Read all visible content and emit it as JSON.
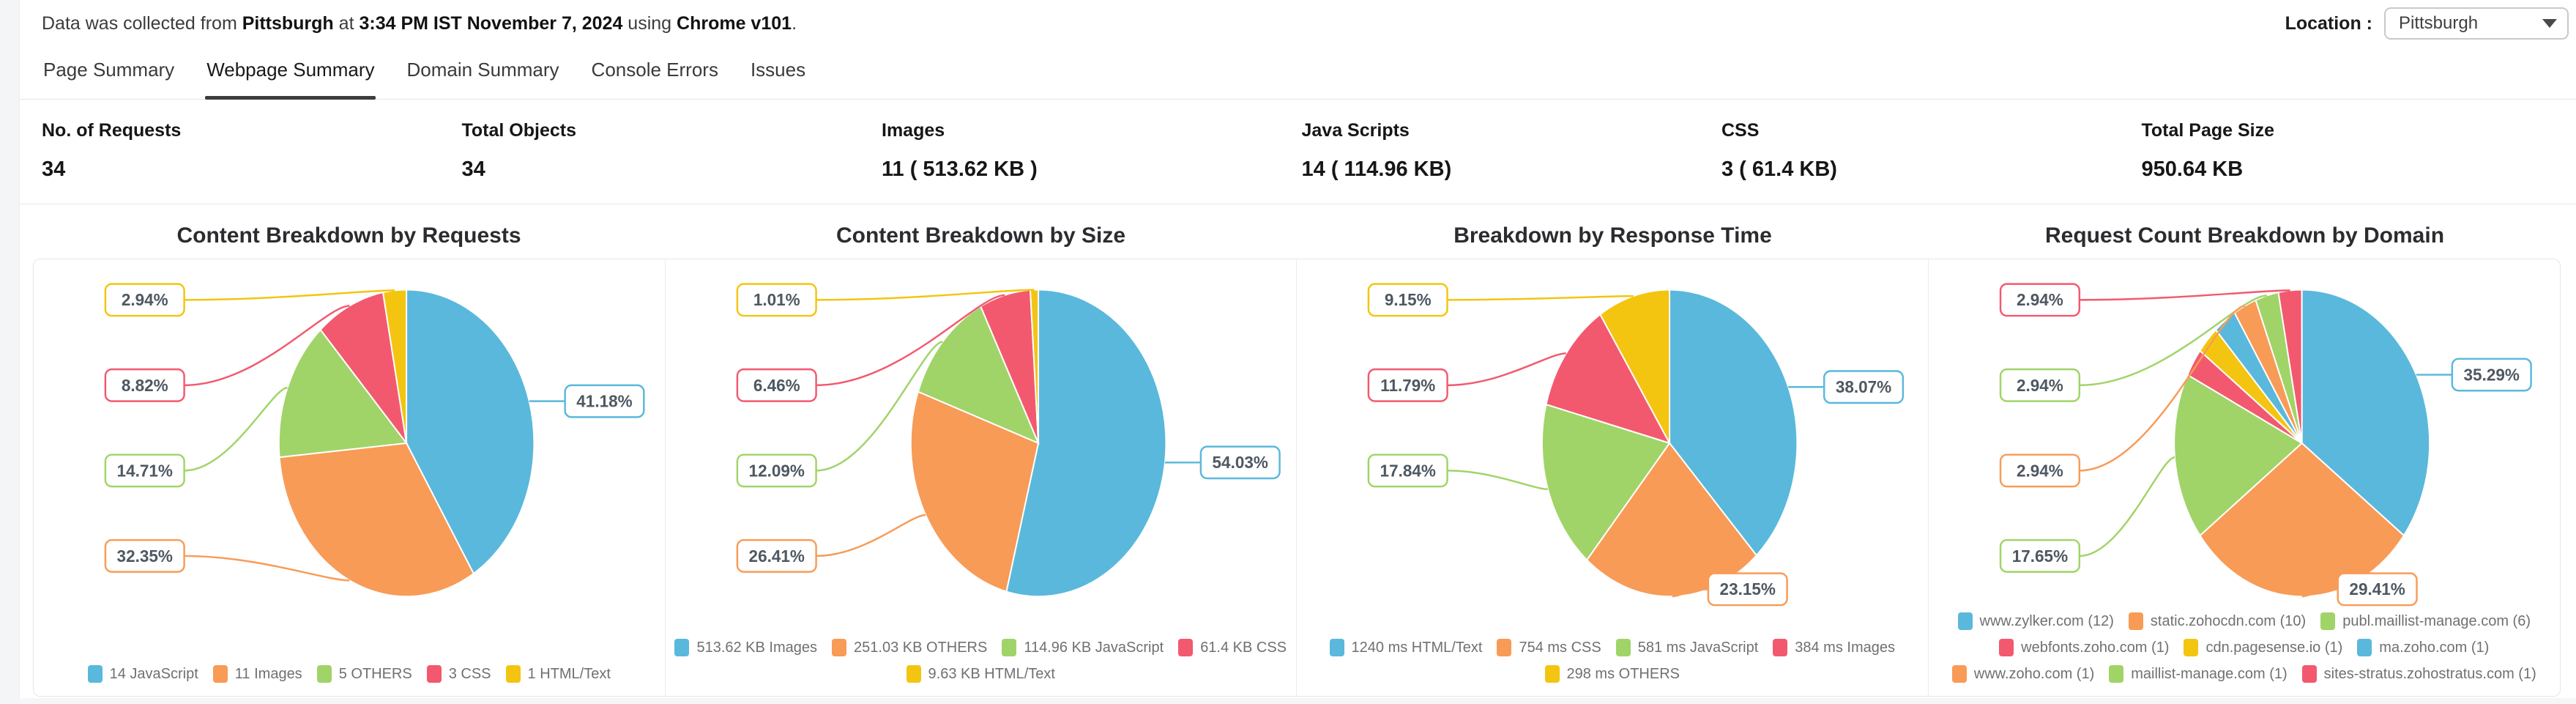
{
  "topbar": {
    "info": {
      "prefix": "Data was collected from ",
      "location": "Pittsburgh",
      "mid1": " at ",
      "datetime": "3:34 PM IST November 7, 2024",
      "mid2": " using ",
      "browser": "Chrome v101",
      "suffix": "."
    },
    "location_label": "Location :",
    "location_value": "Pittsburgh"
  },
  "tabs": {
    "items": [
      {
        "label": "Page Summary",
        "active": false
      },
      {
        "label": "Webpage Summary",
        "active": true
      },
      {
        "label": "Domain Summary",
        "active": false
      },
      {
        "label": "Console Errors",
        "active": false
      },
      {
        "label": "Issues",
        "active": false
      }
    ]
  },
  "stats": {
    "items": [
      {
        "label": "No. of Requests",
        "value": "34"
      },
      {
        "label": "Total Objects",
        "value": "34"
      },
      {
        "label": "Images",
        "value": "11 ( 513.62 KB )"
      },
      {
        "label": "Java Scripts",
        "value": "14 ( 114.96 KB)"
      },
      {
        "label": "CSS",
        "value": "3 ( 61.4 KB)"
      },
      {
        "label": "Total Page Size",
        "value": "950.64 KB"
      }
    ]
  },
  "palette": {
    "blue": "#5ab8dc",
    "orange": "#f89b57",
    "green": "#a0d468",
    "pink": "#f2596f",
    "yellow": "#f3c511"
  },
  "chart_data": [
    {
      "type": "pie",
      "title": "Content Breakdown by Requests",
      "legend_position": "bottom",
      "label_style": "callout-percent",
      "slices": [
        {
          "label": "14 JavaScript",
          "value": 41.18,
          "pct": "41.18%",
          "color": "blue",
          "labeled": true
        },
        {
          "label": "11 Images",
          "value": 32.35,
          "pct": "32.35%",
          "color": "orange",
          "labeled": true
        },
        {
          "label": "5 OTHERS",
          "value": 14.71,
          "pct": "14.71%",
          "color": "green",
          "labeled": true
        },
        {
          "label": "3 CSS",
          "value": 8.82,
          "pct": "8.82%",
          "color": "pink",
          "labeled": true
        },
        {
          "label": "1 HTML/Text",
          "value": 2.94,
          "pct": "2.94%",
          "color": "yellow",
          "labeled": true
        }
      ]
    },
    {
      "type": "pie",
      "title": "Content Breakdown by Size",
      "legend_position": "bottom",
      "label_style": "callout-percent",
      "slices": [
        {
          "label": "513.62 KB Images",
          "value": 54.03,
          "pct": "54.03%",
          "color": "blue",
          "labeled": true
        },
        {
          "label": "251.03 KB OTHERS",
          "value": 26.41,
          "pct": "26.41%",
          "color": "orange",
          "labeled": true
        },
        {
          "label": "114.96 KB JavaScript",
          "value": 12.09,
          "pct": "12.09%",
          "color": "green",
          "labeled": true
        },
        {
          "label": "61.4 KB CSS",
          "value": 6.46,
          "pct": "6.46%",
          "color": "pink",
          "labeled": true
        },
        {
          "label": "9.63 KB HTML/Text",
          "value": 1.01,
          "pct": "1.01%",
          "color": "yellow",
          "labeled": true
        }
      ]
    },
    {
      "type": "pie",
      "title": "Breakdown by Response Time",
      "legend_position": "bottom",
      "label_style": "callout-percent",
      "slices": [
        {
          "label": "1240 ms HTML/Text",
          "value": 38.07,
          "pct": "38.07%",
          "color": "blue",
          "labeled": true
        },
        {
          "label": "754 ms CSS",
          "value": 23.15,
          "pct": "23.15%",
          "color": "orange",
          "labeled": true
        },
        {
          "label": "581 ms JavaScript",
          "value": 17.84,
          "pct": "17.84%",
          "color": "green",
          "labeled": true
        },
        {
          "label": "384 ms Images",
          "value": 11.79,
          "pct": "11.79%",
          "color": "pink",
          "labeled": true
        },
        {
          "label": "298 ms OTHERS",
          "value": 9.15,
          "pct": "9.15%",
          "color": "yellow",
          "labeled": true
        }
      ]
    },
    {
      "type": "pie",
      "title": "Request Count Breakdown by Domain",
      "legend_position": "bottom",
      "label_style": "callout-percent",
      "slices": [
        {
          "label": "www.zylker.com (12)",
          "value": 35.29,
          "pct": "35.29%",
          "color": "blue",
          "labeled": true
        },
        {
          "label": "static.zohocdn.com (10)",
          "value": 29.41,
          "pct": "29.41%",
          "color": "orange",
          "labeled": true
        },
        {
          "label": "publ.maillist-manage.com (6)",
          "value": 17.65,
          "pct": "17.65%",
          "color": "green",
          "labeled": true
        },
        {
          "label": "webfonts.zoho.com (1)",
          "value": 2.94,
          "pct": "2.94%",
          "color": "pink",
          "labeled": false
        },
        {
          "label": "cdn.pagesense.io (1)",
          "value": 2.94,
          "pct": "2.94%",
          "color": "yellow",
          "labeled": false
        },
        {
          "label": "ma.zoho.com (1)",
          "value": 2.94,
          "pct": "2.94%",
          "color": "blue",
          "labeled": false
        },
        {
          "label": "www.zoho.com (1)",
          "value": 2.94,
          "pct": "2.94%",
          "color": "orange",
          "labeled": true
        },
        {
          "label": "maillist-manage.com (1)",
          "value": 2.94,
          "pct": "2.94%",
          "color": "green",
          "labeled": true
        },
        {
          "label": "sites-stratus.zohostratus.com (1)",
          "value": 2.94,
          "pct": "2.94%",
          "color": "pink",
          "labeled": true
        }
      ]
    }
  ]
}
